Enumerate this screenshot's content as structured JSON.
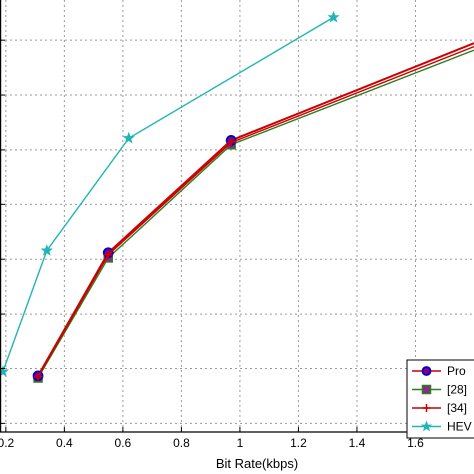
{
  "chart_data": {
    "type": "line",
    "title": "",
    "xlabel": "Bit Rate(kbps)",
    "ylabel": "",
    "xlim": [
      0.18,
      1.8
    ],
    "ylim": [
      0,
      1
    ],
    "x_ticks": [
      0.2,
      0.4,
      0.6,
      0.8,
      1.0,
      1.2,
      1.4,
      1.6
    ],
    "x_tick_labels": [
      "0.2",
      "0.4",
      "0.6",
      "0.8",
      "1",
      "1.2",
      "1.4",
      "1.6"
    ],
    "y_gridlines": [
      0.02,
      0.147,
      0.273,
      0.4,
      0.527,
      0.653,
      0.78,
      0.907
    ],
    "grid": true,
    "legend_position": "bottom-right",
    "series": [
      {
        "name": "Pro",
        "color": "#cc0000",
        "marker": "circle",
        "marker_face": "#800080",
        "marker_edge": "#0000cc",
        "x": [
          0.31,
          0.55,
          0.97,
          1.8
        ],
        "y": [
          0.13,
          0.415,
          0.675,
          0.9
        ],
        "marked": [
          true,
          true,
          true,
          false
        ]
      },
      {
        "name": "[28]",
        "color": "#2e7d1e",
        "marker": "square",
        "marker_face": "#8a2a8a",
        "marker_edge": "#2e7d1e",
        "x": [
          0.31,
          0.55,
          0.97,
          1.8
        ],
        "y": [
          0.125,
          0.403,
          0.665,
          0.884
        ],
        "marked": [
          true,
          true,
          true,
          false
        ]
      },
      {
        "name": "[34]",
        "color": "#cc0000",
        "marker": "plus",
        "marker_face": "#cc0000",
        "marker_edge": "#cc0000",
        "x": [
          0.31,
          0.55,
          0.97,
          1.8
        ],
        "y": [
          0.128,
          0.41,
          0.67,
          0.892
        ],
        "marked": [
          true,
          true,
          true,
          false
        ]
      },
      {
        "name": "HEV",
        "color": "#22b5b5",
        "marker": "star",
        "marker_face": "#22b5b5",
        "marker_edge": "#22b5b5",
        "x": [
          0.19,
          0.34,
          0.62,
          1.32
        ],
        "y": [
          0.14,
          0.42,
          0.68,
          0.96
        ],
        "marked": [
          true,
          true,
          true,
          true
        ]
      }
    ]
  }
}
